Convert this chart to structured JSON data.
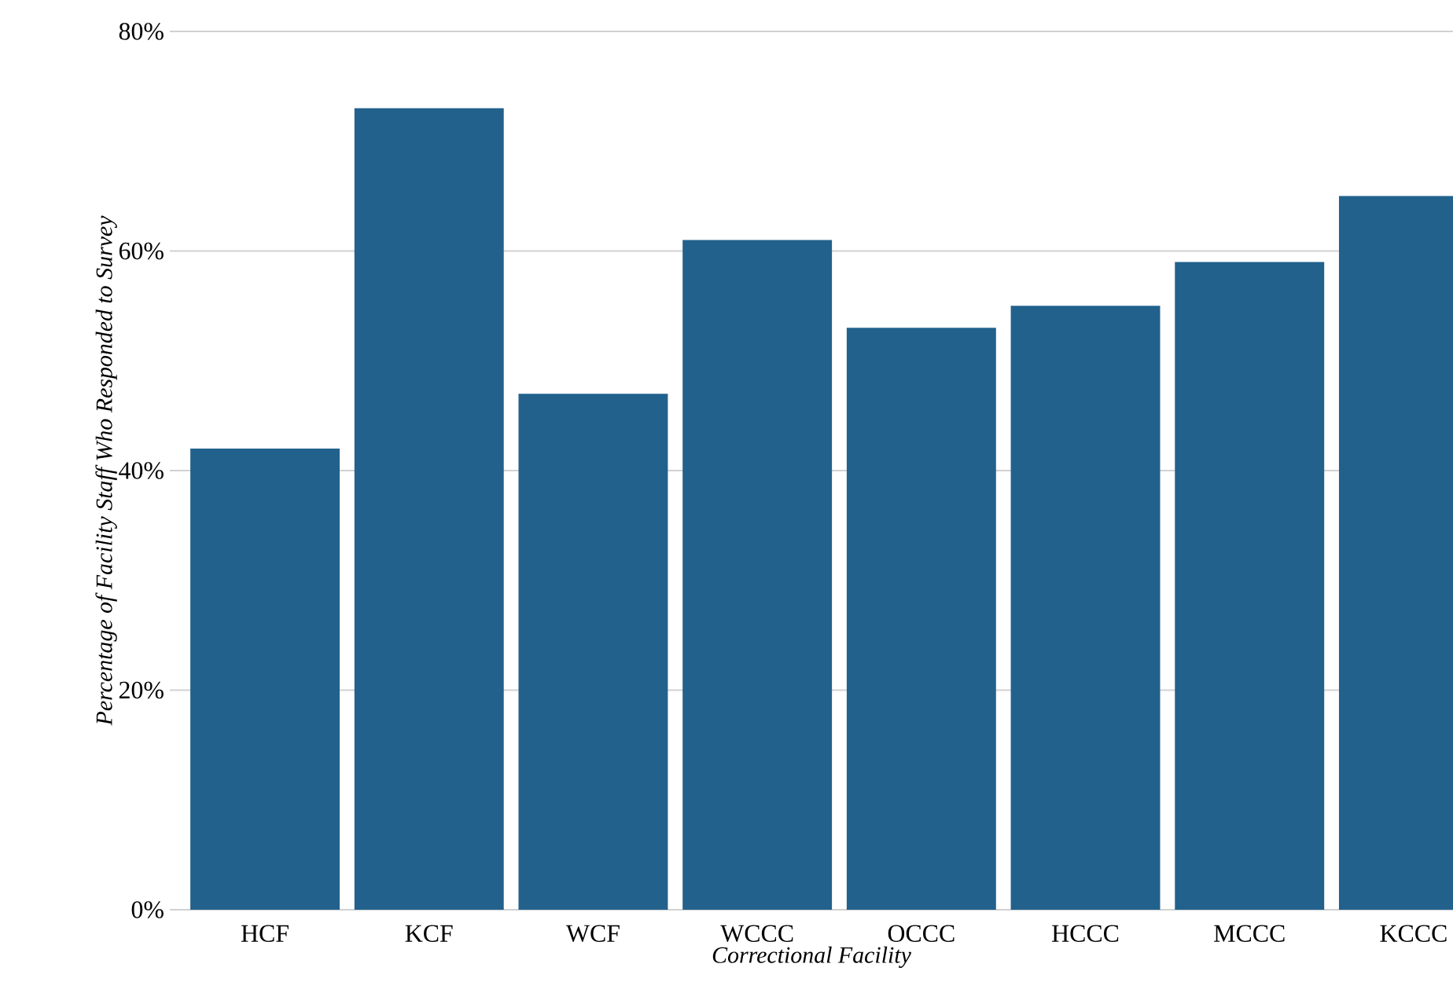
{
  "chart_data": {
    "type": "bar",
    "xlabel": "Correctional Facility",
    "ylabel": "Percentage of Facility Staff Who Responded to Survey",
    "categories": [
      "HCF",
      "KCF",
      "WCF",
      "WCCC",
      "OCCC",
      "HCCC",
      "MCCC",
      "KCCC"
    ],
    "values": [
      42,
      73,
      47,
      61,
      53,
      55,
      59,
      65
    ],
    "color": "#22618c",
    "ylim": [
      0,
      80
    ],
    "yticks": [
      {
        "value": 0,
        "label": "0%"
      },
      {
        "value": 20,
        "label": "20%"
      },
      {
        "value": 40,
        "label": "40%"
      },
      {
        "value": 60,
        "label": "60%"
      },
      {
        "value": 80,
        "label": "80%"
      }
    ],
    "grid": "y"
  }
}
